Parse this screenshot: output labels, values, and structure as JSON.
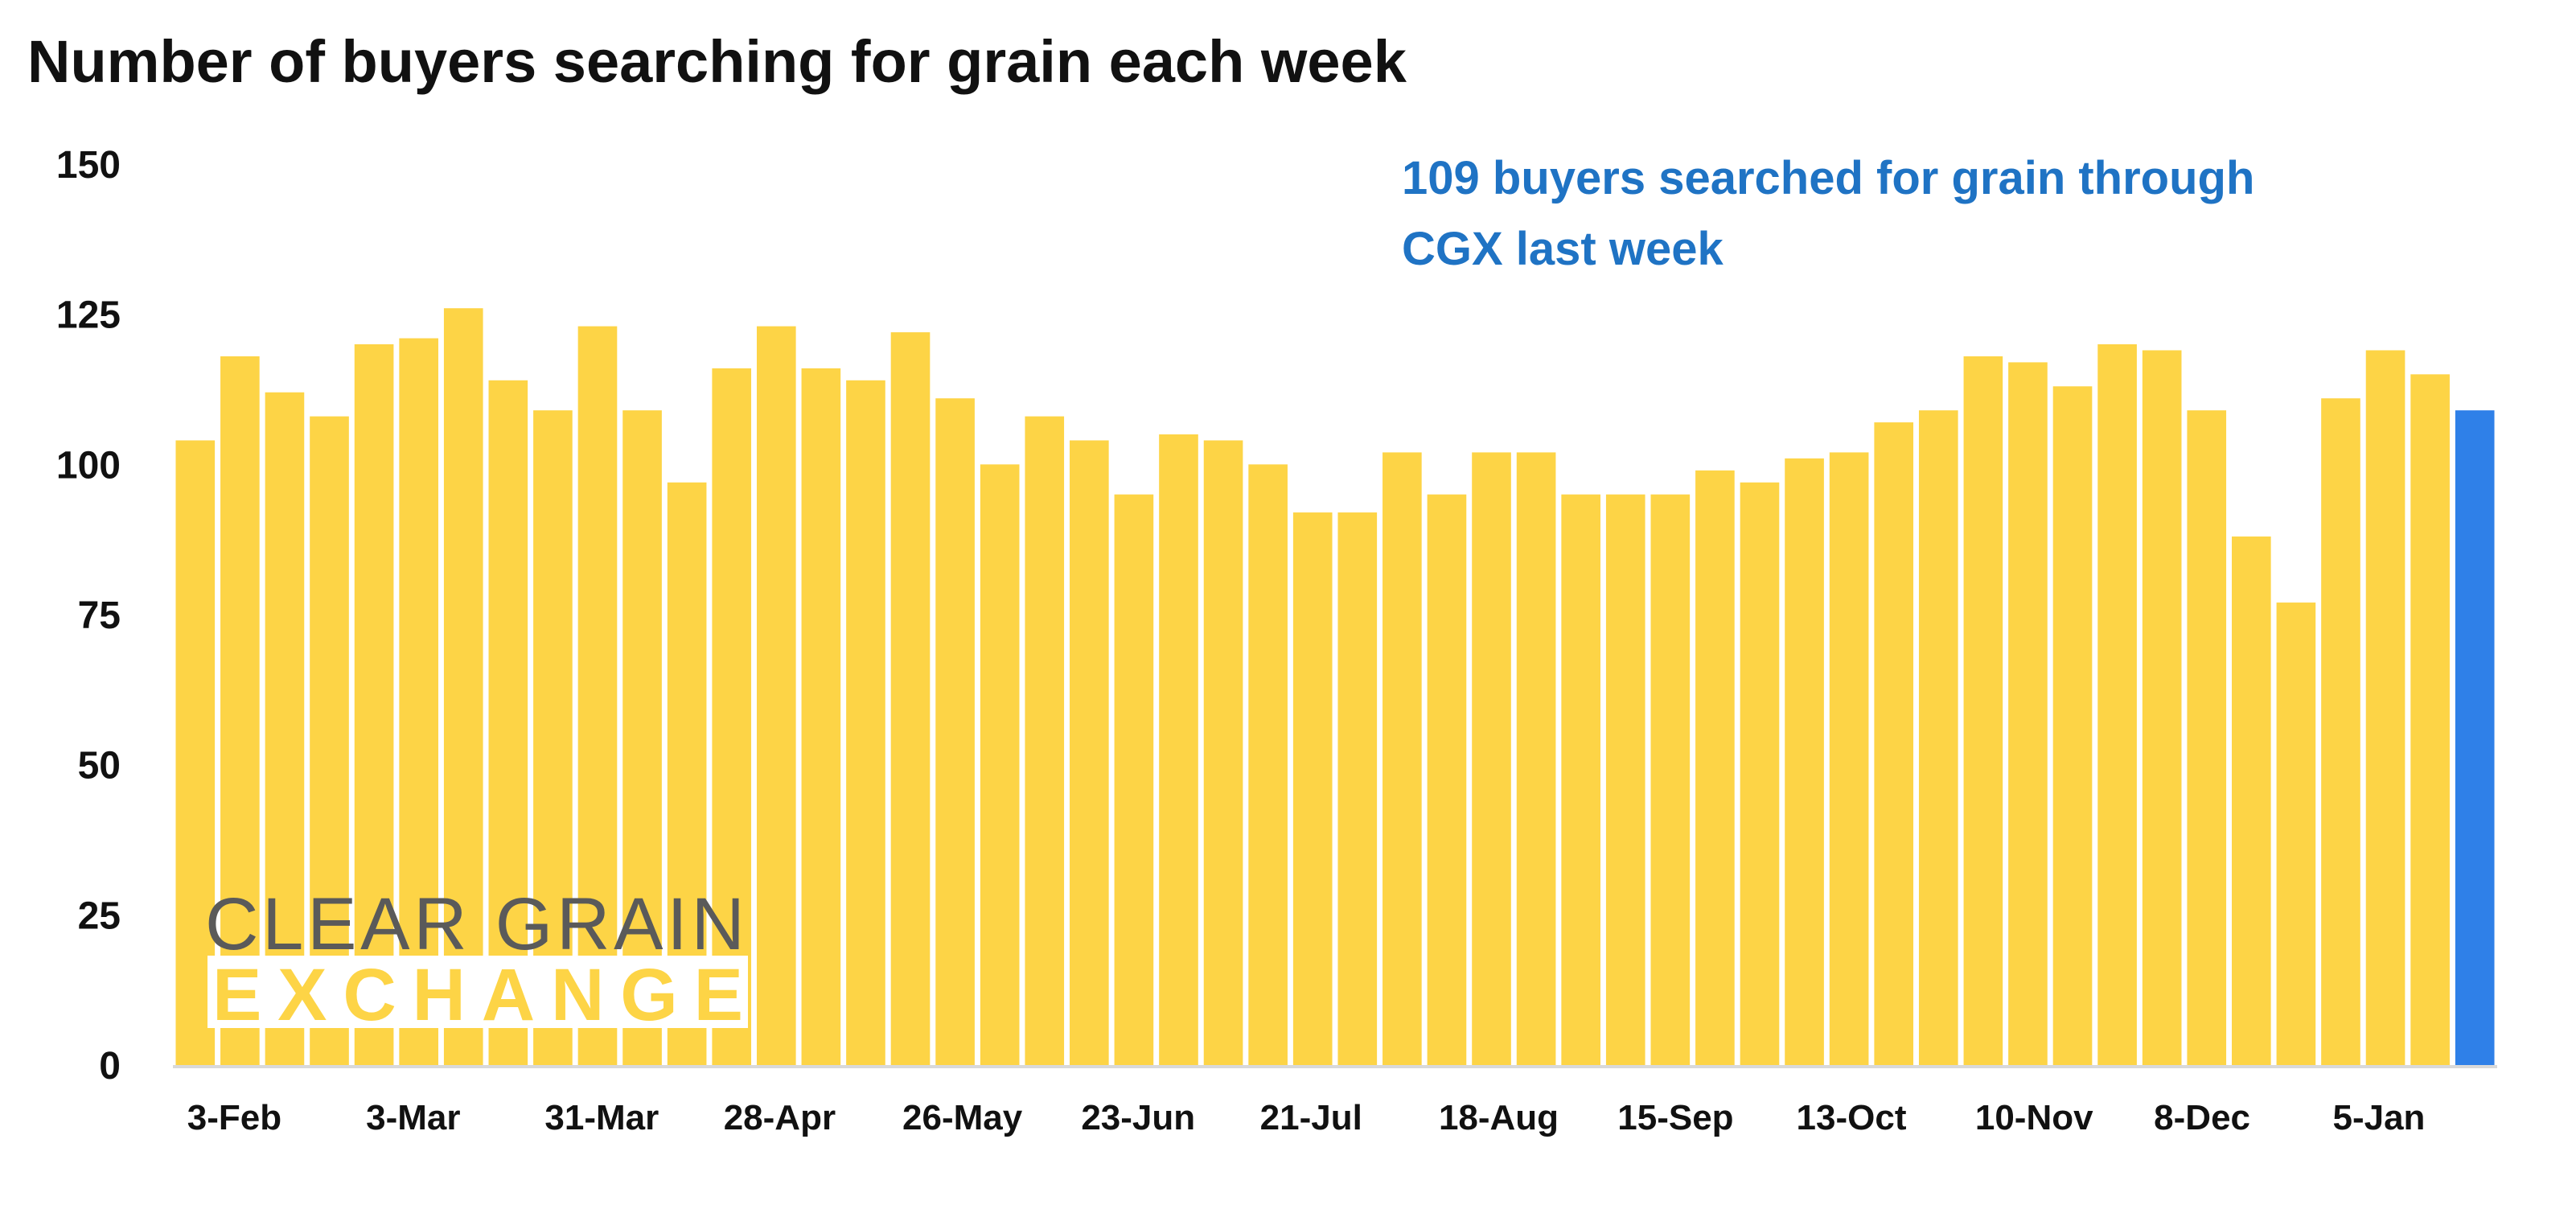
{
  "chart_data": {
    "type": "bar",
    "title": "Number of buyers searching for grain each week",
    "annotation": [
      "109 buyers searched for grain through",
      "CGX last week"
    ],
    "xlabel": "",
    "ylabel": "",
    "ylim": [
      0,
      150
    ],
    "yticks": [
      0,
      25,
      50,
      75,
      100,
      125,
      150
    ],
    "grid": false,
    "x_tick_labels": [
      "3-Feb",
      "3-Mar",
      "31-Mar",
      "28-Apr",
      "26-May",
      "23-Jun",
      "21-Jul",
      "18-Aug",
      "15-Sep",
      "13-Oct",
      "10-Nov",
      "8-Dec",
      "5-Jan"
    ],
    "x_tick_every": 4,
    "values": [
      104,
      118,
      112,
      108,
      120,
      121,
      126,
      114,
      109,
      123,
      109,
      97,
      116,
      123,
      116,
      114,
      122,
      111,
      100,
      108,
      104,
      95,
      105,
      104,
      100,
      92,
      92,
      102,
      95,
      102,
      102,
      95,
      95,
      95,
      99,
      97,
      101,
      102,
      107,
      109,
      118,
      117,
      113,
      120,
      119,
      109,
      88,
      77,
      111,
      119,
      115,
      109
    ],
    "colors": {
      "bar": "#FDD446",
      "highlight": "#2F80E8",
      "annotation": "#1F73C4",
      "axis": "#D9D9D9"
    },
    "highlight_index": "last"
  },
  "logo": {
    "line1": "CLEAR GRAIN",
    "line2": "EXCHANGE",
    "text_color": "#5A5A5A"
  }
}
